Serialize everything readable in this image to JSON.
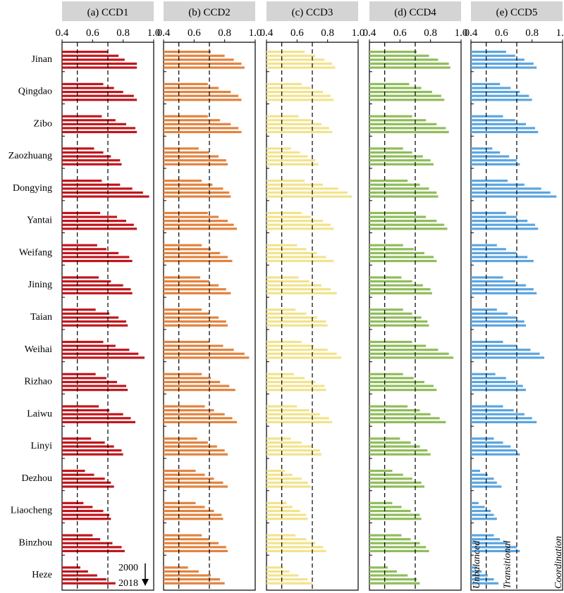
{
  "chart_data": {
    "type": "bar",
    "orientation": "horizontal",
    "x_range": [
      0.4,
      1.0
    ],
    "x_ticks": [
      "0.4",
      "0.6",
      "0.8",
      "1.0"
    ],
    "reference_lines": [
      0.5,
      0.7
    ],
    "years": [
      "2000",
      "2018"
    ],
    "year_arrow_label": "2000 → 2018",
    "cities": [
      "Jinan",
      "Qingdao",
      "Zibo",
      "Zaozhuang",
      "Dongying",
      "Yantai",
      "Weifang",
      "Jining",
      "Taian",
      "Weihai",
      "Rizhao",
      "Laiwu",
      "Linyi",
      "Dezhou",
      "Liaocheng",
      "Binzhou",
      "Heze"
    ],
    "zones": [
      "Unbalanced",
      "Transitional",
      "Coordination"
    ],
    "panels": [
      {
        "title": "(a) CCD1",
        "color": "#c0161c",
        "values": [
          [
            0.7,
            0.77,
            0.81,
            0.89,
            0.89
          ],
          [
            0.67,
            0.74,
            0.8,
            0.87,
            0.89
          ],
          [
            0.66,
            0.75,
            0.82,
            0.88,
            0.89
          ],
          [
            0.61,
            0.67,
            0.72,
            0.78,
            0.79
          ],
          [
            0.66,
            0.78,
            0.86,
            0.93,
            0.97
          ],
          [
            0.65,
            0.76,
            0.82,
            0.87,
            0.89
          ],
          [
            0.63,
            0.69,
            0.77,
            0.84,
            0.86
          ],
          [
            0.64,
            0.72,
            0.8,
            0.85,
            0.86
          ],
          [
            0.62,
            0.71,
            0.77,
            0.82,
            0.83
          ],
          [
            0.67,
            0.75,
            0.84,
            0.9,
            0.94
          ],
          [
            0.62,
            0.69,
            0.76,
            0.82,
            0.83
          ],
          [
            0.64,
            0.71,
            0.8,
            0.85,
            0.88
          ],
          [
            0.59,
            0.68,
            0.74,
            0.79,
            0.8
          ],
          [
            0.55,
            0.61,
            0.68,
            0.72,
            0.74
          ],
          [
            0.54,
            0.6,
            0.67,
            0.71,
            0.72
          ],
          [
            0.6,
            0.65,
            0.73,
            0.79,
            0.81
          ],
          [
            0.52,
            0.57,
            0.63,
            0.69,
            0.75
          ]
        ]
      },
      {
        "title": "(b) CCD2",
        "color": "#e2833f",
        "values": [
          [
            0.71,
            0.8,
            0.86,
            0.91,
            0.93
          ],
          [
            0.69,
            0.76,
            0.84,
            0.89,
            0.91
          ],
          [
            0.69,
            0.77,
            0.84,
            0.89,
            0.91
          ],
          [
            0.63,
            0.7,
            0.76,
            0.81,
            0.82
          ],
          [
            0.65,
            0.72,
            0.79,
            0.83,
            0.84
          ],
          [
            0.69,
            0.76,
            0.82,
            0.86,
            0.88
          ],
          [
            0.65,
            0.71,
            0.77,
            0.82,
            0.85
          ],
          [
            0.64,
            0.7,
            0.76,
            0.81,
            0.84
          ],
          [
            0.65,
            0.7,
            0.76,
            0.81,
            0.82
          ],
          [
            0.7,
            0.79,
            0.86,
            0.93,
            0.96
          ],
          [
            0.65,
            0.71,
            0.77,
            0.83,
            0.87
          ],
          [
            0.67,
            0.73,
            0.8,
            0.85,
            0.88
          ],
          [
            0.62,
            0.69,
            0.75,
            0.8,
            0.82
          ],
          [
            0.61,
            0.67,
            0.73,
            0.79,
            0.82
          ],
          [
            0.61,
            0.67,
            0.73,
            0.78,
            0.79
          ],
          [
            0.65,
            0.7,
            0.76,
            0.81,
            0.82
          ],
          [
            0.56,
            0.63,
            0.71,
            0.77,
            0.8
          ]
        ]
      },
      {
        "title": "(c) CCD3",
        "color": "#f2e38c",
        "values": [
          [
            0.65,
            0.72,
            0.78,
            0.83,
            0.85
          ],
          [
            0.63,
            0.69,
            0.77,
            0.82,
            0.84
          ],
          [
            0.61,
            0.69,
            0.76,
            0.81,
            0.83
          ],
          [
            0.56,
            0.62,
            0.67,
            0.72,
            0.74
          ],
          [
            0.65,
            0.77,
            0.87,
            0.93,
            0.96
          ],
          [
            0.63,
            0.69,
            0.77,
            0.82,
            0.84
          ],
          [
            0.6,
            0.66,
            0.73,
            0.79,
            0.84
          ],
          [
            0.61,
            0.68,
            0.76,
            0.82,
            0.86
          ],
          [
            0.59,
            0.66,
            0.73,
            0.79,
            0.8
          ],
          [
            0.63,
            0.71,
            0.8,
            0.86,
            0.89
          ],
          [
            0.58,
            0.65,
            0.72,
            0.78,
            0.79
          ],
          [
            0.6,
            0.68,
            0.75,
            0.81,
            0.83
          ],
          [
            0.56,
            0.63,
            0.7,
            0.75,
            0.76
          ],
          [
            0.52,
            0.57,
            0.63,
            0.67,
            0.69
          ],
          [
            0.53,
            0.57,
            0.62,
            0.66,
            0.67
          ],
          [
            0.59,
            0.66,
            0.72,
            0.77,
            0.79
          ],
          [
            0.51,
            0.55,
            0.61,
            0.67,
            0.7
          ]
        ]
      },
      {
        "title": "(d) CCD4",
        "color": "#8fbd5a",
        "values": [
          [
            0.71,
            0.79,
            0.85,
            0.92,
            0.93
          ],
          [
            0.66,
            0.74,
            0.81,
            0.87,
            0.89
          ],
          [
            0.68,
            0.77,
            0.84,
            0.9,
            0.92
          ],
          [
            0.62,
            0.68,
            0.75,
            0.8,
            0.82
          ],
          [
            0.65,
            0.73,
            0.79,
            0.84,
            0.85
          ],
          [
            0.7,
            0.77,
            0.84,
            0.89,
            0.91
          ],
          [
            0.62,
            0.69,
            0.76,
            0.82,
            0.84
          ],
          [
            0.61,
            0.68,
            0.75,
            0.8,
            0.81
          ],
          [
            0.62,
            0.68,
            0.74,
            0.78,
            0.79
          ],
          [
            0.68,
            0.77,
            0.85,
            0.92,
            0.95
          ],
          [
            0.62,
            0.69,
            0.76,
            0.82,
            0.84
          ],
          [
            0.65,
            0.73,
            0.8,
            0.86,
            0.9
          ],
          [
            0.6,
            0.67,
            0.73,
            0.78,
            0.8
          ],
          [
            0.55,
            0.62,
            0.68,
            0.74,
            0.76
          ],
          [
            0.55,
            0.61,
            0.67,
            0.73,
            0.74
          ],
          [
            0.61,
            0.67,
            0.73,
            0.77,
            0.79
          ],
          [
            0.52,
            0.58,
            0.65,
            0.71,
            0.73
          ]
        ]
      },
      {
        "title": "(e) CCD5",
        "color": "#5ba5e0",
        "values": [
          [
            0.63,
            0.69,
            0.75,
            0.81,
            0.83
          ],
          [
            0.59,
            0.66,
            0.72,
            0.78,
            0.8
          ],
          [
            0.61,
            0.69,
            0.76,
            0.82,
            0.84
          ],
          [
            0.54,
            0.59,
            0.65,
            0.7,
            0.72
          ],
          [
            0.64,
            0.75,
            0.86,
            0.92,
            0.96
          ],
          [
            0.63,
            0.7,
            0.77,
            0.82,
            0.84
          ],
          [
            0.57,
            0.63,
            0.7,
            0.77,
            0.81
          ],
          [
            0.61,
            0.69,
            0.76,
            0.81,
            0.83
          ],
          [
            0.57,
            0.64,
            0.7,
            0.75,
            0.76
          ],
          [
            0.61,
            0.7,
            0.79,
            0.85,
            0.88
          ],
          [
            0.56,
            0.63,
            0.69,
            0.74,
            0.76
          ],
          [
            0.61,
            0.68,
            0.75,
            0.8,
            0.83
          ],
          [
            0.55,
            0.61,
            0.66,
            0.7,
            0.72
          ],
          [
            0.46,
            0.51,
            0.55,
            0.57,
            0.6
          ],
          [
            0.45,
            0.49,
            0.53,
            0.55,
            0.57
          ],
          [
            0.55,
            0.59,
            0.64,
            0.7,
            0.72
          ],
          [
            0.44,
            0.47,
            0.51,
            0.55,
            0.58
          ]
        ]
      }
    ]
  }
}
